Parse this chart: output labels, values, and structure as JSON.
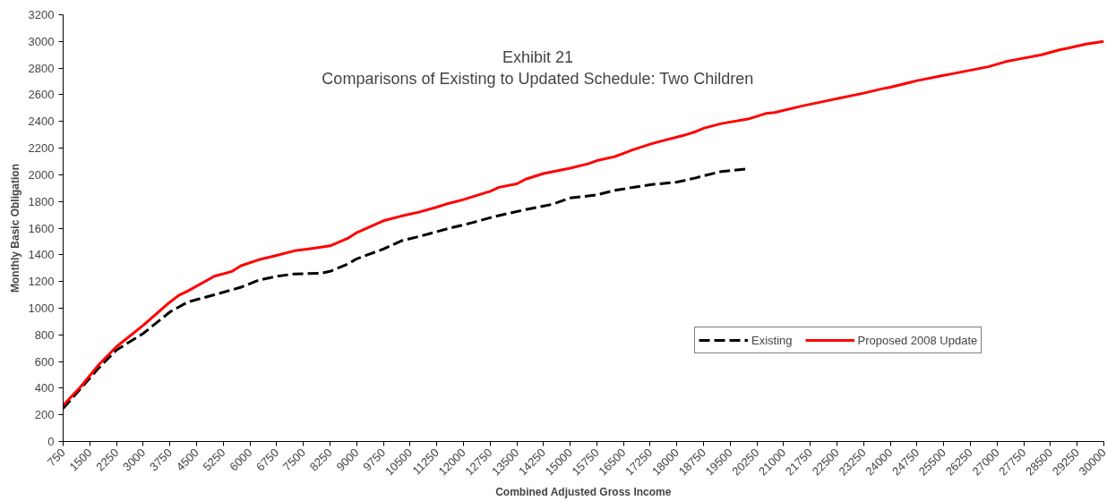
{
  "chart_data": {
    "type": "line",
    "title": "Exhibit 21",
    "subtitle": "Comparisons of Existing to Updated Schedule: Two Children",
    "xlabel": "Combined Adjusted Gross Income",
    "ylabel": "Monthly Basic Obligation",
    "series": [
      {
        "name": "Existing",
        "color": "#000000",
        "line_style": "dashed",
        "x": [
          750,
          1250,
          1750,
          2250,
          3000,
          3750,
          4250,
          5000,
          5750,
          6250,
          6750,
          7250,
          8000,
          8250,
          8750,
          9000,
          9750,
          10250,
          10750,
          11500,
          12250,
          12750,
          13250,
          13750,
          14500,
          15000,
          15750,
          16250,
          16500,
          17250,
          18000,
          18500,
          19250,
          20000
        ],
        "values": [
          248,
          400,
          551,
          686,
          810,
          971,
          1046,
          1100,
          1157,
          1211,
          1238,
          1257,
          1262,
          1276,
          1331,
          1370,
          1443,
          1504,
          1537,
          1592,
          1641,
          1678,
          1710,
          1739,
          1779,
          1826,
          1849,
          1883,
          1894,
          1926,
          1945,
          1975,
          2025,
          2045
        ]
      },
      {
        "name": "Proposed 2008 Update",
        "color": "#ff0000",
        "line_style": "solid",
        "x": [
          750,
          1250,
          1750,
          2250,
          3000,
          3750,
          4000,
          4250,
          5000,
          5500,
          5750,
          6250,
          6750,
          7250,
          7750,
          8250,
          8750,
          9000,
          9750,
          10250,
          10750,
          11250,
          11500,
          12000,
          12500,
          12750,
          13000,
          13500,
          13750,
          14250,
          15000,
          15500,
          15750,
          16250,
          16750,
          17250,
          17500,
          18250,
          18500,
          18750,
          19250,
          20000,
          20500,
          20750,
          21500,
          22250,
          22500,
          23250,
          23750,
          24000,
          24750,
          25500,
          25750,
          26750,
          27250,
          27500,
          28250,
          28750,
          29000,
          29500,
          30000
        ],
        "values": [
          270,
          413,
          575,
          711,
          871,
          1045,
          1096,
          1128,
          1239,
          1276,
          1318,
          1363,
          1395,
          1430,
          1447,
          1467,
          1523,
          1566,
          1655,
          1690,
          1720,
          1758,
          1779,
          1814,
          1856,
          1876,
          1906,
          1932,
          1967,
          2009,
          2049,
          2082,
          2106,
          2136,
          2186,
          2230,
          2248,
          2300,
          2321,
          2349,
          2384,
          2418,
          2460,
          2467,
          2515,
          2557,
          2571,
          2612,
          2644,
          2657,
          2706,
          2745,
          2758,
          2810,
          2849,
          2862,
          2900,
          2937,
          2950,
          2980,
          3000
        ]
      }
    ],
    "xlim": [
      750,
      30000
    ],
    "xticks": [
      750,
      1500,
      2250,
      3000,
      3750,
      4500,
      5250,
      6000,
      6750,
      7500,
      8250,
      9000,
      9750,
      10500,
      11250,
      12000,
      12750,
      13500,
      14250,
      15000,
      15750,
      16500,
      17250,
      18000,
      18750,
      19500,
      20250,
      21000,
      21750,
      22500,
      23250,
      24000,
      24750,
      25500,
      26250,
      27000,
      27750,
      28500,
      29250,
      30000
    ],
    "ylim": [
      0,
      3200
    ],
    "yticks": [
      0,
      200,
      400,
      600,
      800,
      1000,
      1200,
      1400,
      1600,
      1800,
      2000,
      2200,
      2400,
      2600,
      2800,
      3000,
      3200
    ],
    "grid": false,
    "legend": "right"
  }
}
